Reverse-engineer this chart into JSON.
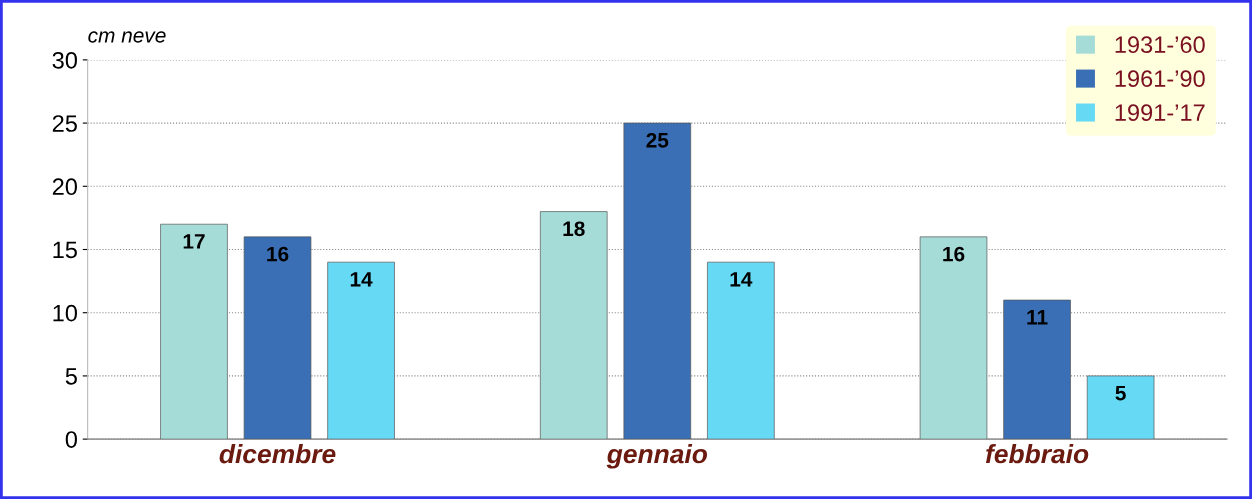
{
  "chart_data": {
    "type": "bar",
    "ylabel": "cm neve",
    "categories": [
      "dicembre",
      "gennaio",
      "febbraio"
    ],
    "series": [
      {
        "name": "1931-’60",
        "color": "#a6dcd8",
        "values": [
          17,
          18,
          16
        ]
      },
      {
        "name": "1961-’90",
        "color": "#3a6fb5",
        "values": [
          16,
          25,
          11
        ]
      },
      {
        "name": "1991-’17",
        "color": "#66d9f5",
        "values": [
          14,
          14,
          5
        ]
      }
    ],
    "ylim": [
      0,
      30
    ],
    "yticks": [
      0,
      5,
      10,
      15,
      20,
      25,
      30
    ],
    "grid": "y",
    "legend": "top right",
    "data_labels": true
  }
}
